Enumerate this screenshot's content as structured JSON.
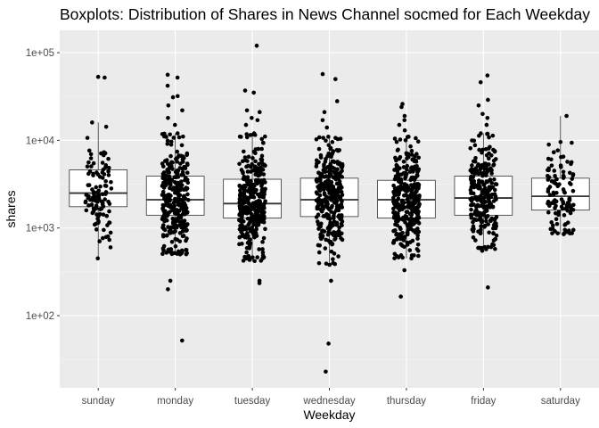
{
  "chart_data": {
    "type": "boxplot",
    "title": "Boxplots: Distribution of Shares in News Channel socmed for Each Weekday",
    "xlabel": "Weekday",
    "ylabel": "shares",
    "y_scale": "log10",
    "ylim": [
      15,
      180000
    ],
    "y_ticks": [
      {
        "value": 100,
        "label": "1e+02"
      },
      {
        "value": 1000,
        "label": "1e+03"
      },
      {
        "value": 10000,
        "label": "1e+04"
      },
      {
        "value": 100000,
        "label": "1e+05"
      }
    ],
    "grid": true,
    "legend": "none",
    "colors": {
      "panel_background": "#ebebeb",
      "grid_major": "#ffffff",
      "grid_minor": "#f5f5f5",
      "box_fill": "#ffffff",
      "box_stroke": "#333333",
      "points": "#000000",
      "tick_label": "#4d4d4d"
    },
    "categories": [
      "sunday",
      "monday",
      "tuesday",
      "wednesday",
      "thursday",
      "friday",
      "saturday"
    ],
    "boxes": [
      {
        "category": "sunday",
        "q1": 1750,
        "median": 2500,
        "q3": 4600,
        "whisker_low": 450,
        "whisker_high": 16000,
        "n_points": 110,
        "outliers": [
          53000,
          52000
        ]
      },
      {
        "category": "monday",
        "q1": 1400,
        "median": 2100,
        "q3": 3900,
        "whisker_low": 500,
        "whisker_high": 12000,
        "n_points": 300,
        "outliers": [
          56000,
          52000,
          42000,
          32000,
          31000,
          25000,
          22000,
          18000,
          15000,
          250,
          200,
          52
        ]
      },
      {
        "category": "tuesday",
        "q1": 1300,
        "median": 1900,
        "q3": 3600,
        "whisker_low": 420,
        "whisker_high": 12000,
        "n_points": 330,
        "outliers": [
          120000,
          37000,
          35000,
          22000,
          21000,
          18000,
          17000,
          15000,
          250,
          235
        ]
      },
      {
        "category": "wednesday",
        "q1": 1350,
        "median": 2100,
        "q3": 3700,
        "whisker_low": 380,
        "whisker_high": 11000,
        "n_points": 320,
        "outliers": [
          57000,
          50000,
          28000,
          21000,
          17000,
          14000,
          250,
          48,
          23
        ]
      },
      {
        "category": "thursday",
        "q1": 1300,
        "median": 2100,
        "q3": 3500,
        "whisker_low": 450,
        "whisker_high": 11000,
        "n_points": 330,
        "outliers": [
          26000,
          24000,
          19000,
          17000,
          15000,
          13000,
          330,
          165
        ]
      },
      {
        "category": "friday",
        "q1": 1400,
        "median": 2200,
        "q3": 3900,
        "whisker_low": 550,
        "whisker_high": 12000,
        "n_points": 260,
        "outliers": [
          55000,
          46000,
          29000,
          25000,
          20000,
          18000,
          15000,
          210
        ]
      },
      {
        "category": "saturday",
        "q1": 1600,
        "median": 2300,
        "q3": 3700,
        "whisker_low": 850,
        "whisker_high": 19000,
        "n_points": 110,
        "outliers": []
      }
    ]
  }
}
